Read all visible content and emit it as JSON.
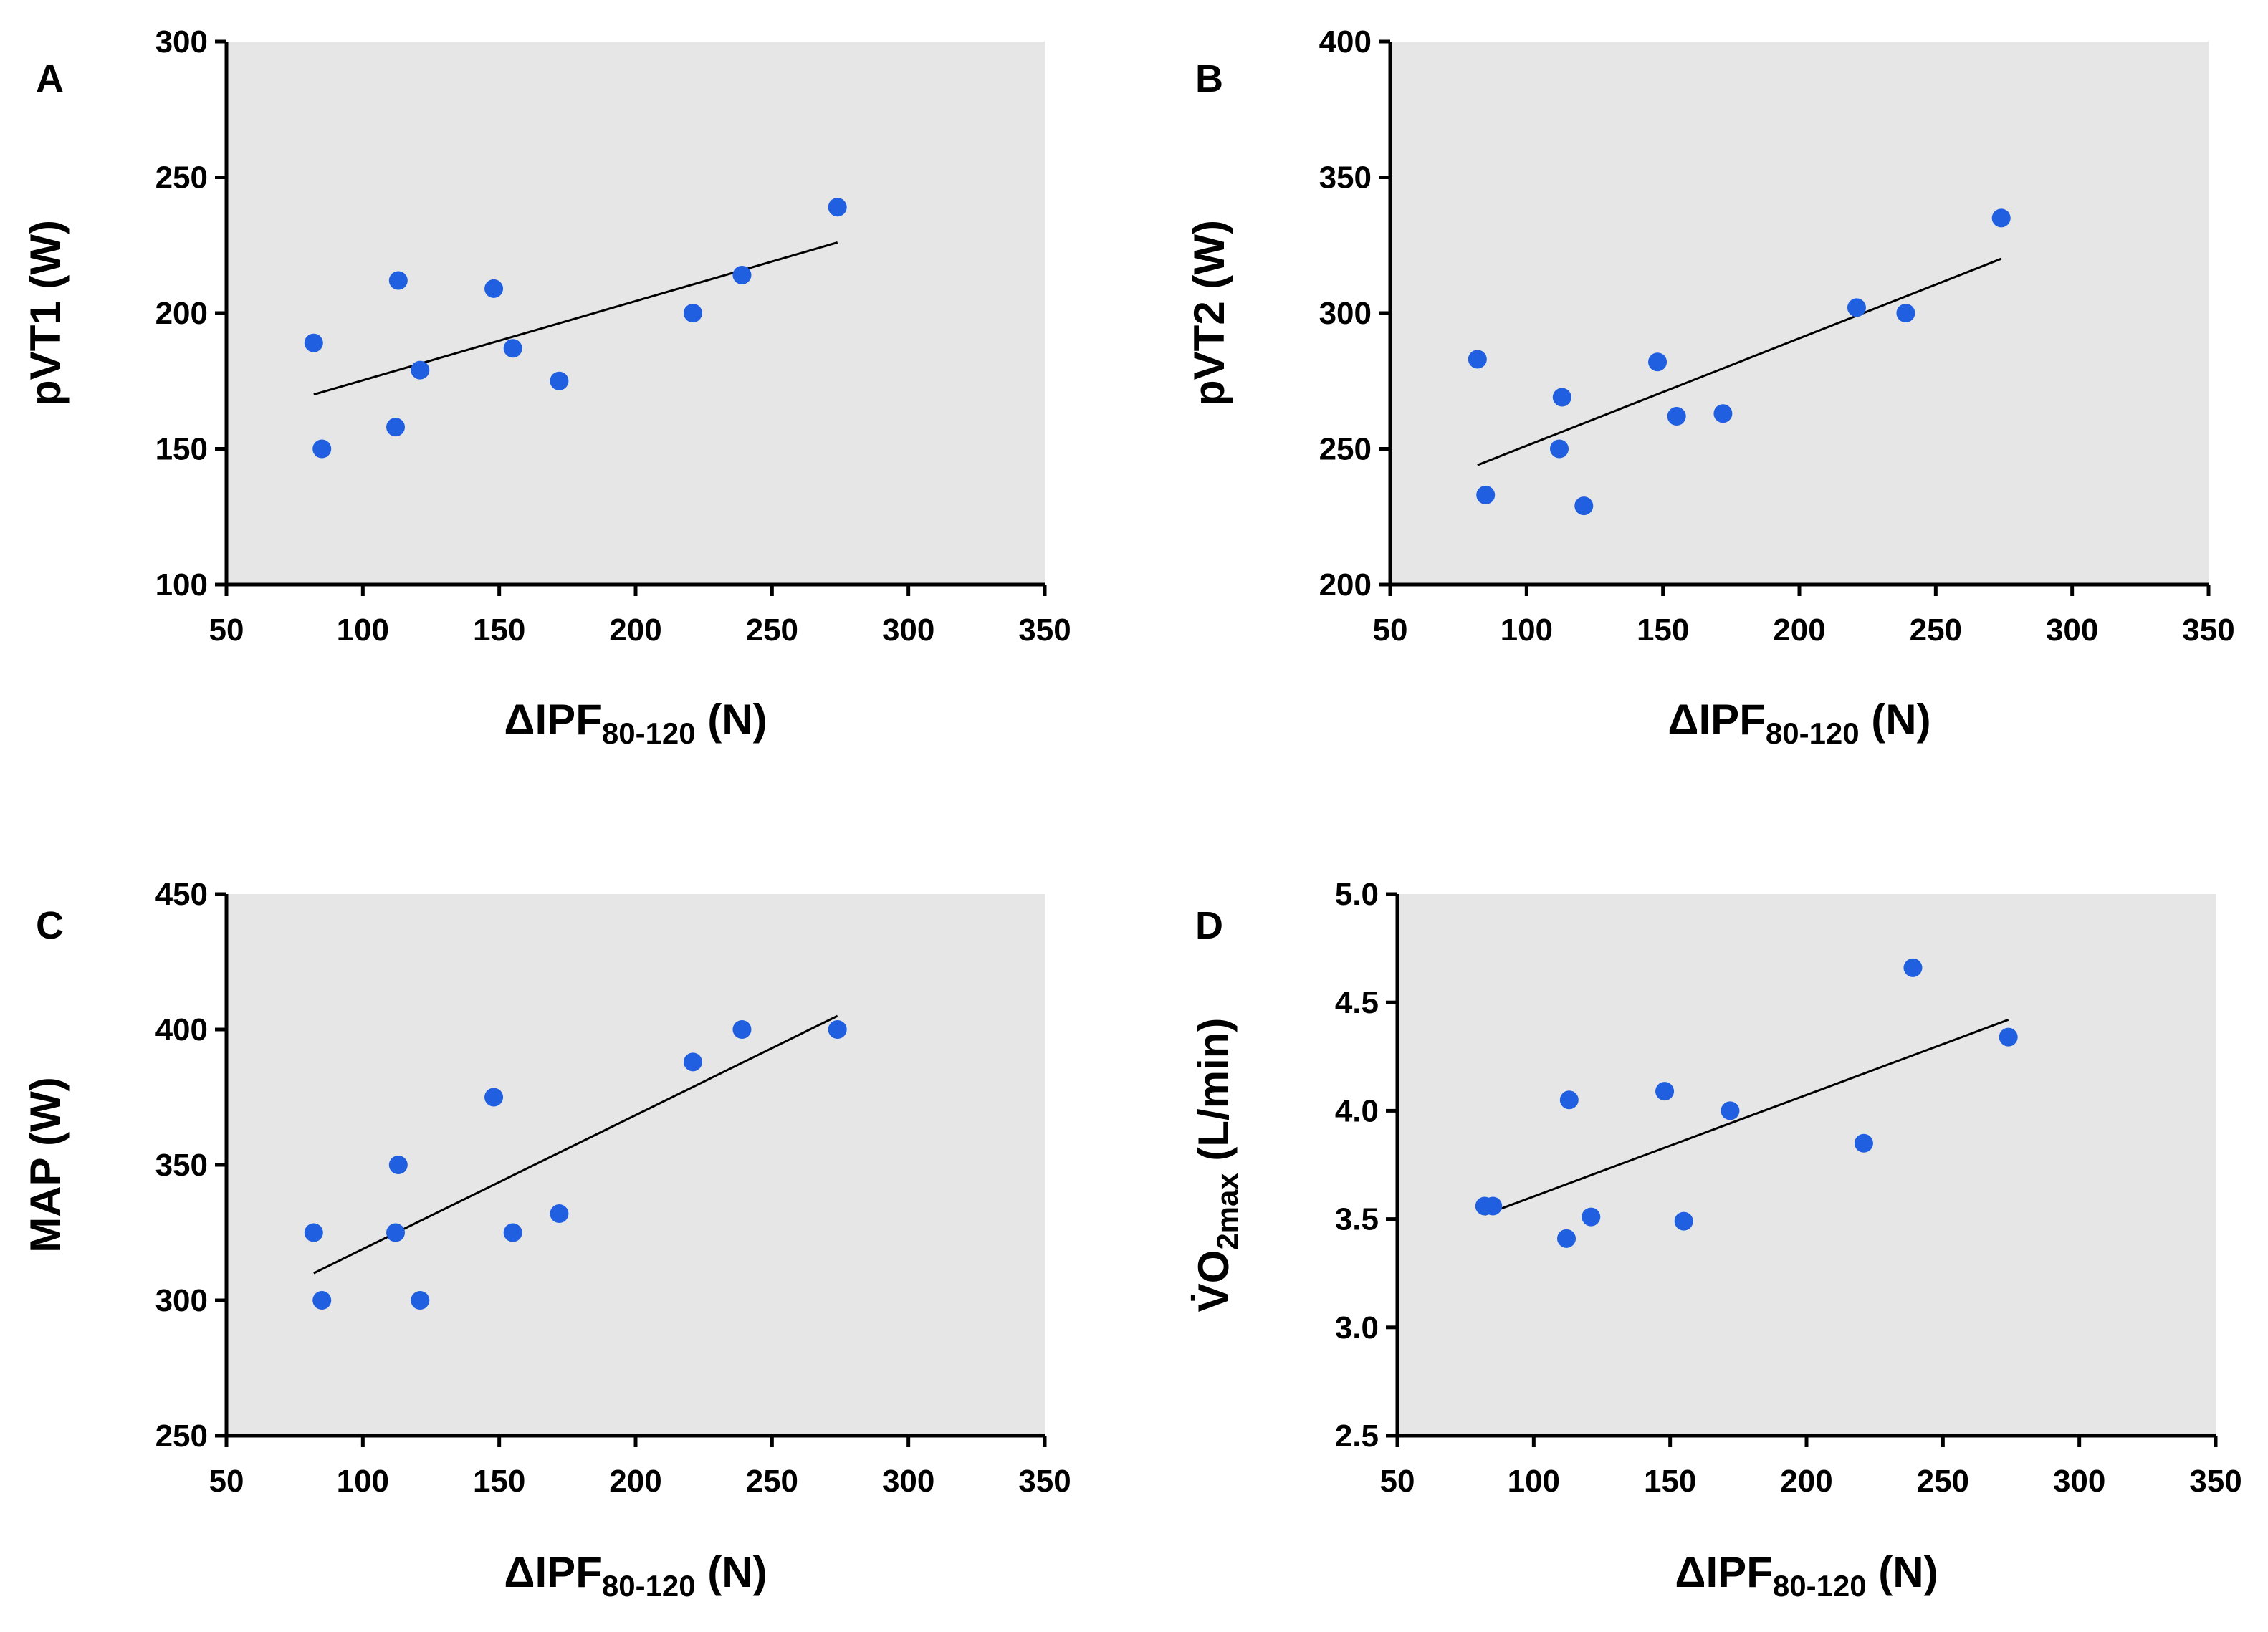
{
  "chart_data": [
    {
      "panel": "A",
      "type": "scatter",
      "xlabel": {
        "prefix": "ΔIPF",
        "sub": "80-120",
        "suffix": " (N)"
      },
      "ylabel": {
        "prefix": "pVT1 (W)",
        "sub": "",
        "suffix": ""
      },
      "xlim": [
        50,
        350
      ],
      "ylim": [
        100,
        300
      ],
      "xticks": [
        "50",
        "100",
        "150",
        "200",
        "250",
        "300",
        "350"
      ],
      "yticks": [
        "100",
        "150",
        "200",
        "250",
        "300"
      ],
      "points": [
        {
          "x": 82,
          "y": 189
        },
        {
          "x": 85,
          "y": 150
        },
        {
          "x": 112,
          "y": 158
        },
        {
          "x": 113,
          "y": 212
        },
        {
          "x": 121,
          "y": 179
        },
        {
          "x": 148,
          "y": 209
        },
        {
          "x": 155,
          "y": 187
        },
        {
          "x": 172,
          "y": 175
        },
        {
          "x": 221,
          "y": 200
        },
        {
          "x": 239,
          "y": 214
        },
        {
          "x": 274,
          "y": 239
        }
      ],
      "fit": {
        "x1": 82,
        "y1": 170,
        "x2": 274,
        "y2": 226
      }
    },
    {
      "panel": "B",
      "type": "scatter",
      "xlabel": {
        "prefix": "ΔIPF",
        "sub": "80-120",
        "suffix": " (N)"
      },
      "ylabel": {
        "prefix": "pVT2 (W)",
        "sub": "",
        "suffix": ""
      },
      "xlim": [
        50,
        350
      ],
      "ylim": [
        200,
        400
      ],
      "xticks": [
        "50",
        "100",
        "150",
        "200",
        "250",
        "300",
        "350"
      ],
      "yticks": [
        "200",
        "250",
        "300",
        "350",
        "400"
      ],
      "points": [
        {
          "x": 82,
          "y": 283
        },
        {
          "x": 85,
          "y": 233
        },
        {
          "x": 112,
          "y": 250
        },
        {
          "x": 113,
          "y": 269
        },
        {
          "x": 121,
          "y": 229
        },
        {
          "x": 148,
          "y": 282
        },
        {
          "x": 155,
          "y": 262
        },
        {
          "x": 172,
          "y": 263
        },
        {
          "x": 221,
          "y": 302
        },
        {
          "x": 239,
          "y": 300
        },
        {
          "x": 274,
          "y": 335
        }
      ],
      "fit": {
        "x1": 82,
        "y1": 244,
        "x2": 274,
        "y2": 320
      }
    },
    {
      "panel": "C",
      "type": "scatter",
      "xlabel": {
        "prefix": "ΔIPF",
        "sub": "80-120",
        "suffix": " (N)"
      },
      "ylabel": {
        "prefix": "MAP (W)",
        "sub": "",
        "suffix": ""
      },
      "xlim": [
        50,
        350
      ],
      "ylim": [
        250,
        450
      ],
      "xticks": [
        "50",
        "100",
        "150",
        "200",
        "250",
        "300",
        "350"
      ],
      "yticks": [
        "250",
        "300",
        "350",
        "400",
        "450"
      ],
      "points": [
        {
          "x": 82,
          "y": 325
        },
        {
          "x": 85,
          "y": 300
        },
        {
          "x": 112,
          "y": 325
        },
        {
          "x": 113,
          "y": 350
        },
        {
          "x": 121,
          "y": 300
        },
        {
          "x": 148,
          "y": 375
        },
        {
          "x": 155,
          "y": 325
        },
        {
          "x": 172,
          "y": 332
        },
        {
          "x": 221,
          "y": 388
        },
        {
          "x": 239,
          "y": 400
        },
        {
          "x": 274,
          "y": 400
        }
      ],
      "fit": {
        "x1": 82,
        "y1": 310,
        "x2": 274,
        "y2": 405
      }
    },
    {
      "panel": "D",
      "type": "scatter",
      "xlabel": {
        "prefix": "ΔIPF",
        "sub": "80-120",
        "suffix": " (N)"
      },
      "ylabel": {
        "prefix": "V̇O",
        "sub": "2max",
        "suffix": " (L/min)"
      },
      "xlim": [
        50,
        350
      ],
      "ylim": [
        2.5,
        5.0
      ],
      "xticks": [
        "50",
        "100",
        "150",
        "200",
        "250",
        "300",
        "350"
      ],
      "yticks": [
        "2.5",
        "3.0",
        "3.5",
        "4.0",
        "4.5",
        "5.0"
      ],
      "points": [
        {
          "x": 82,
          "y": 3.56
        },
        {
          "x": 85,
          "y": 3.56
        },
        {
          "x": 112,
          "y": 3.41
        },
        {
          "x": 113,
          "y": 4.05
        },
        {
          "x": 121,
          "y": 3.51
        },
        {
          "x": 148,
          "y": 4.09
        },
        {
          "x": 155,
          "y": 3.49
        },
        {
          "x": 172,
          "y": 4.0
        },
        {
          "x": 221,
          "y": 3.85
        },
        {
          "x": 239,
          "y": 4.66
        },
        {
          "x": 274,
          "y": 4.34
        }
      ],
      "fit": {
        "x1": 82,
        "y1": 3.52,
        "x2": 274,
        "y2": 4.42
      }
    }
  ],
  "colors": {
    "plot_background": "#e6e6e6",
    "marker": "#1f5fe0",
    "axis": "#000000",
    "fit_line": "#000000"
  }
}
